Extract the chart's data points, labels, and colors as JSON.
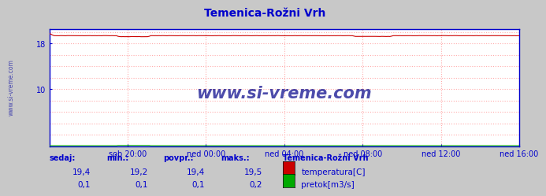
{
  "title": "Temenica-Rožni Vrh",
  "title_color": "#0000cc",
  "bg_color": "#c8c8c8",
  "plot_bg_color": "#e8e8f8",
  "plot_bg_inner": "#ffffff",
  "grid_color": "#ffaaaa",
  "grid_style": ":",
  "border_color": "#0000cc",
  "watermark": "www.si-vreme.com",
  "watermark_color": "#000088",
  "x_tick_labels": [
    "sob 20:00",
    "ned 00:00",
    "ned 04:00",
    "ned 08:00",
    "ned 12:00",
    "ned 16:00"
  ],
  "ylim_min": 0,
  "ylim_max": 20.5,
  "ytick_val": 18,
  "ytick_label": "18",
  "temp_color": "#cc0000",
  "flow_color": "#00aa00",
  "temp_value": "19,4",
  "temp_min": "19,2",
  "temp_avg": "19,4",
  "temp_max": "19,5",
  "flow_value": "0,1",
  "flow_min": "0,1",
  "flow_avg": "0,1",
  "flow_max": "0,2",
  "legend_title": "Temenica-Rožni Vrh",
  "legend_color": "#0000cc",
  "text_color": "#0000cc",
  "n_points": 288,
  "sidebar_color": "#3333aa"
}
